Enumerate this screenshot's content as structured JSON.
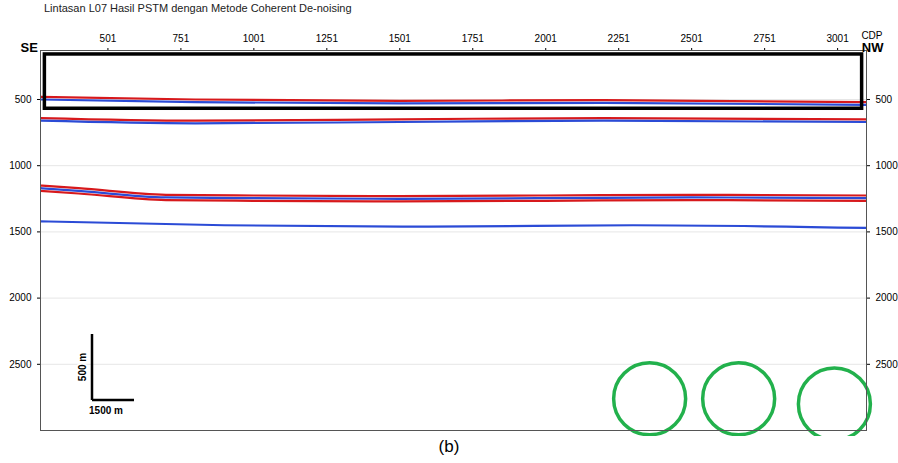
{
  "chart_data": {
    "type": "seismic_section",
    "title": "Lintasan L07 Hasil PSTM dengan Metode Coherent De-noising",
    "x_label": "CDP",
    "direction_labels": [
      "SE",
      "NW"
    ],
    "xlim": [
      270,
      3100
    ],
    "xticks": [
      501,
      751,
      1001,
      1251,
      1501,
      1751,
      2001,
      2251,
      2501,
      2751,
      3001
    ],
    "ylim": [
      130,
      3000
    ],
    "yticks": [
      500,
      1000,
      1500,
      2000,
      2500
    ],
    "grid": true,
    "series": [
      {
        "color": "#d7191c",
        "x": [
          270,
          800,
          1500,
          2200,
          3100
        ],
        "values": [
          480,
          500,
          510,
          505,
          520
        ]
      },
      {
        "color": "#2b4bd6",
        "x": [
          270,
          800,
          1500,
          2200,
          3100
        ],
        "values": [
          500,
          520,
          530,
          525,
          540
        ]
      },
      {
        "color": "#d7191c",
        "x": [
          270,
          800,
          1500,
          2200,
          3100
        ],
        "values": [
          640,
          660,
          650,
          640,
          650
        ]
      },
      {
        "color": "#2b4bd6",
        "x": [
          270,
          800,
          1500,
          2200,
          3100
        ],
        "values": [
          660,
          680,
          670,
          660,
          670
        ]
      },
      {
        "color": "#d7191c",
        "x": [
          270,
          400,
          700,
          1000,
          1500,
          2000,
          2500,
          3100
        ],
        "values": [
          1150,
          1170,
          1220,
          1225,
          1230,
          1225,
          1220,
          1225
        ]
      },
      {
        "color": "#2b4bd6",
        "x": [
          270,
          400,
          700,
          1000,
          1500,
          2000,
          2500,
          3100
        ],
        "values": [
          1170,
          1190,
          1240,
          1245,
          1250,
          1245,
          1240,
          1245
        ]
      },
      {
        "color": "#d7191c",
        "x": [
          270,
          400,
          700,
          1000,
          1500,
          2000,
          2500,
          3100
        ],
        "values": [
          1190,
          1210,
          1260,
          1265,
          1270,
          1265,
          1260,
          1265
        ]
      },
      {
        "color": "#2b4bd6",
        "x": [
          270,
          900,
          1600,
          2300,
          3100
        ],
        "values": [
          1420,
          1450,
          1460,
          1450,
          1470
        ]
      }
    ],
    "highlight_box": {
      "xlim": [
        285,
        3085
      ],
      "ylim": [
        160,
        570
      ],
      "color": "#000000"
    },
    "highlight_circles": {
      "x": [
        2357,
        2662,
        2990
      ],
      "y": [
        2760,
        2760,
        2800
      ],
      "color": "#22b14c"
    },
    "scale_bar": {
      "vertical": "500 m",
      "horizontal": "1500 m"
    },
    "caption": "(b)"
  }
}
